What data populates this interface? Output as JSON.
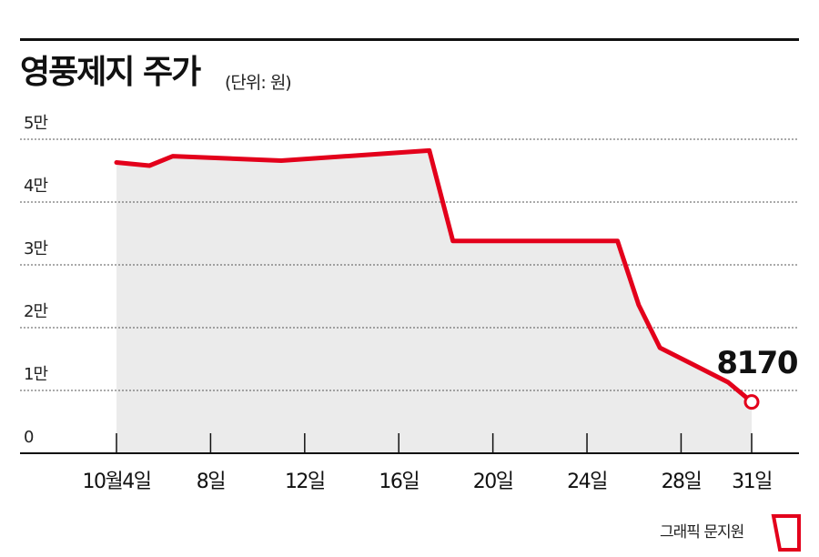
{
  "chart_data": {
    "type": "area",
    "title": "영풍제지 주가",
    "unit_note": "(단위: 원)",
    "y_ticks": [
      {
        "value": 50000,
        "label": "5만"
      },
      {
        "value": 40000,
        "label": "4만"
      },
      {
        "value": 30000,
        "label": "3만"
      },
      {
        "value": 20000,
        "label": "2만"
      },
      {
        "value": 10000,
        "label": "1만"
      },
      {
        "value": 0,
        "label": "0"
      }
    ],
    "x_ticks": [
      {
        "day": 4,
        "label": "10월4일"
      },
      {
        "day": 8,
        "label": "8일"
      },
      {
        "day": 12,
        "label": "12일"
      },
      {
        "day": 16,
        "label": "16일"
      },
      {
        "day": 20,
        "label": "20일"
      },
      {
        "day": 24,
        "label": "24일"
      },
      {
        "day": 28,
        "label": "28일"
      },
      {
        "day": 31,
        "label": "31일"
      }
    ],
    "ylim": [
      0,
      50000
    ],
    "xlim": [
      4,
      31
    ],
    "grid": true,
    "series": [
      {
        "points": [
          {
            "x": 4,
            "y": 46300
          },
          {
            "x": 5.4,
            "y": 45800
          },
          {
            "x": 6.4,
            "y": 47300
          },
          {
            "x": 11,
            "y": 46600
          },
          {
            "x": 17.3,
            "y": 48200
          },
          {
            "x": 18.3,
            "y": 33800
          },
          {
            "x": 25.3,
            "y": 33800
          },
          {
            "x": 26.2,
            "y": 23600
          },
          {
            "x": 27.1,
            "y": 16800
          },
          {
            "x": 30,
            "y": 11300
          },
          {
            "x": 31,
            "y": 8170
          }
        ]
      }
    ],
    "last_value_label": "8170",
    "colors": {
      "line": "#e3001b",
      "area": "#ebebeb",
      "grid": "#555555",
      "axis": "#111111"
    }
  },
  "credit": "그래픽 문지원"
}
